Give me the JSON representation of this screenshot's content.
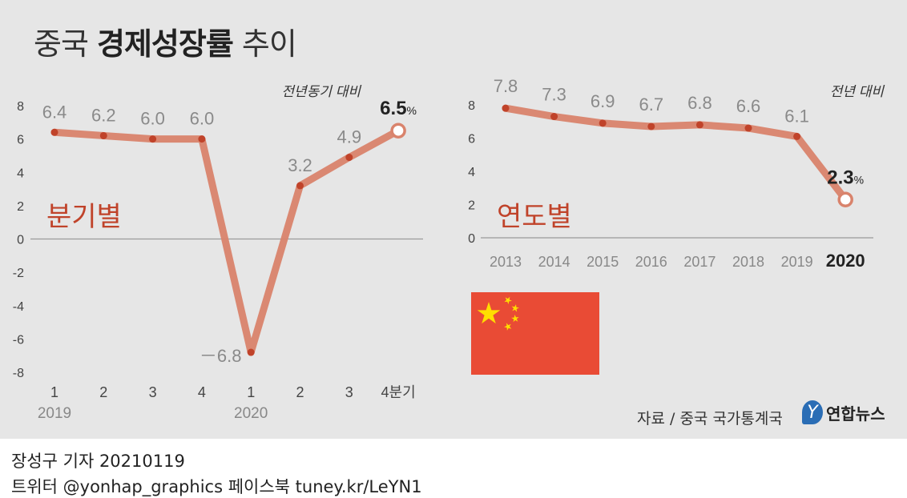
{
  "title": {
    "normal_1": "중국 ",
    "bold": "경제성장률",
    "normal_2": " 추이"
  },
  "colors": {
    "line": "#d9836c",
    "marker": "#c0432a",
    "label": "#8a8a8a",
    "accent": "#c0432a",
    "panel": "#e6e6e6",
    "flag_red": "#e94b35",
    "flag_star": "#ffde00"
  },
  "chart_data": [
    {
      "type": "line",
      "title": "분기별",
      "note": "전년동기 대비",
      "ylim": [
        -8,
        8
      ],
      "yticks": [
        "8",
        "6",
        "4",
        "2",
        "0",
        "-2",
        "-4",
        "-6",
        "-8"
      ],
      "categories": [
        "1",
        "2",
        "3",
        "4",
        "1",
        "2",
        "3",
        "4분기"
      ],
      "years": [
        "2019",
        "2020"
      ],
      "values": [
        6.4,
        6.2,
        6.0,
        6.0,
        -6.8,
        3.2,
        4.9,
        6.5
      ],
      "labels": [
        "6.4",
        "6.2",
        "6.0",
        "6.0",
        "－6.8",
        "3.2",
        "4.9",
        "6.5"
      ],
      "last_unit": "%"
    },
    {
      "type": "line",
      "title": "연도별",
      "note": "전년 대비",
      "ylim": [
        0,
        8
      ],
      "yticks": [
        "8",
        "6",
        "4",
        "2",
        "0"
      ],
      "categories": [
        "2013",
        "2014",
        "2015",
        "2016",
        "2017",
        "2018",
        "2019",
        "2020"
      ],
      "values": [
        7.8,
        7.3,
        6.9,
        6.7,
        6.8,
        6.6,
        6.1,
        2.3
      ],
      "labels": [
        "7.8",
        "7.3",
        "6.9",
        "6.7",
        "6.8",
        "6.6",
        "6.1",
        "2.3"
      ],
      "last_unit": "%"
    }
  ],
  "source": "자료 / 중국 국가통계국",
  "logo": {
    "mark": "Y",
    "text": "연합뉴스"
  },
  "credits": {
    "line1": "장성구 기자  20210119",
    "line2": "트위터 @yonhap_graphics  페이스북 tuney.kr/LeYN1"
  }
}
